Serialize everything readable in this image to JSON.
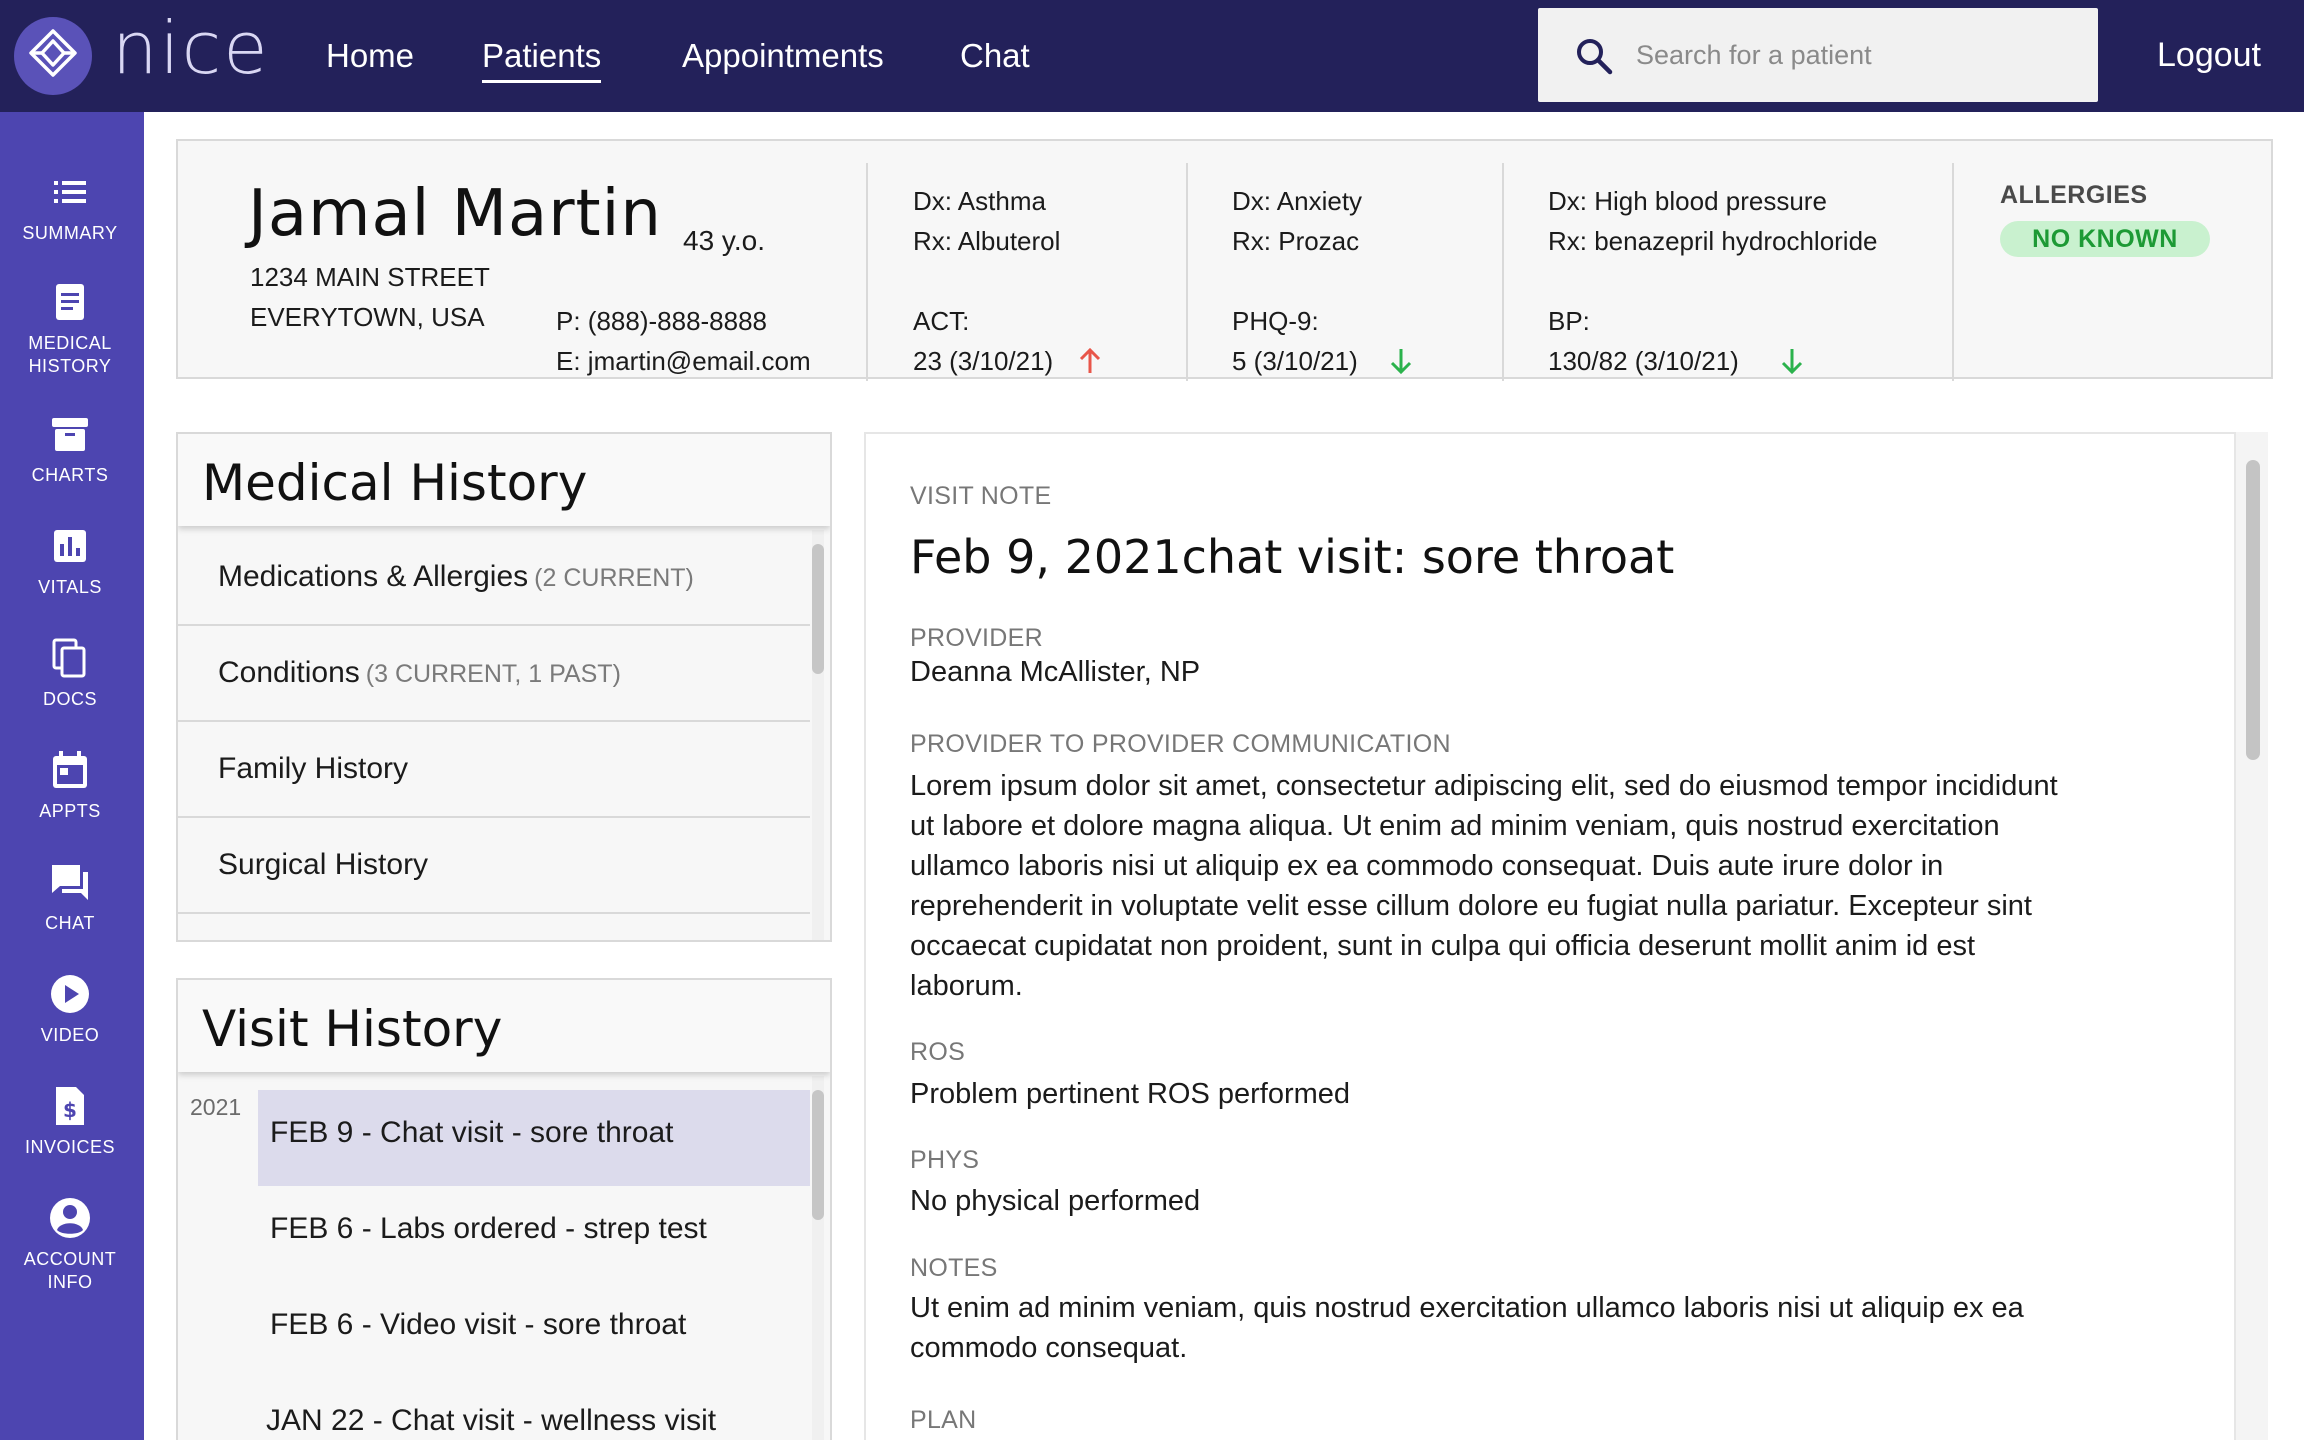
{
  "nav": {
    "logo": "nice",
    "items": [
      {
        "label": "Home"
      },
      {
        "label": "Patients"
      },
      {
        "label": "Appointments"
      },
      {
        "label": "Chat"
      }
    ],
    "active": "Patients",
    "search_placeholder": "Search for a patient",
    "logout": "Logout"
  },
  "sidebar": {
    "items": [
      {
        "label": "SUMMARY",
        "icon": "list-icon"
      },
      {
        "label": "MEDICAL HISTORY",
        "icon": "document-icon"
      },
      {
        "label": "CHARTS",
        "icon": "archive-icon"
      },
      {
        "label": "VITALS",
        "icon": "bar-chart-icon"
      },
      {
        "label": "DOCS",
        "icon": "copy-icon"
      },
      {
        "label": "APPTS",
        "icon": "calendar-icon"
      },
      {
        "label": "CHAT",
        "icon": "chat-icon"
      },
      {
        "label": "VIDEO",
        "icon": "play-icon"
      },
      {
        "label": "INVOICES",
        "icon": "invoice-icon"
      },
      {
        "label": "ACCOUNT INFO",
        "icon": "account-icon"
      }
    ]
  },
  "patient": {
    "name": "Jamal Martin",
    "age": "43 y.o.",
    "address_line1": "1234 MAIN STREET",
    "address_line2": "EVERYTOWN, USA",
    "phone": "P: (888)-888-8888",
    "email": "E: jmartin@email.com",
    "conditions": [
      {
        "dx": "Dx: Asthma",
        "rx": "Rx:  Albuterol",
        "metric_label": "ACT:",
        "metric_value": "23 (3/10/21)",
        "trend": "up",
        "trend_color": "#e8564a"
      },
      {
        "dx": "Dx: Anxiety",
        "rx": "Rx:  Prozac",
        "metric_label": "PHQ-9:",
        "metric_value": "5 (3/10/21)",
        "trend": "down",
        "trend_color": "#2bb24c"
      },
      {
        "dx": "Dx: High blood pressure",
        "rx": "Rx:  benazepril hydrochloride",
        "metric_label": "BP:",
        "metric_value": "130/82 (3/10/21)",
        "trend": "down",
        "trend_color": "#2bb24c"
      }
    ],
    "allergies_title": "ALLERGIES",
    "allergies_value": "NO KNOWN"
  },
  "medical_history": {
    "title": "Medical History",
    "items": [
      {
        "label": "Medications & Allergies",
        "count": "(2 CURRENT)"
      },
      {
        "label": "Conditions",
        "count": "(3 CURRENT, 1 PAST)"
      },
      {
        "label": "Family History",
        "count": ""
      },
      {
        "label": "Surgical History",
        "count": ""
      }
    ]
  },
  "visit_history": {
    "title": "Visit History",
    "year": "2021",
    "visits": [
      {
        "label": "FEB 9 - Chat visit - sore throat",
        "selected": true
      },
      {
        "label": "FEB 6 - Labs ordered - strep test",
        "selected": false
      },
      {
        "label": "FEB 6 - Video visit - sore throat",
        "selected": false
      },
      {
        "label": "JAN 22 - Chat visit - wellness visit",
        "selected": false
      }
    ]
  },
  "visit_note": {
    "section_label": "VISIT NOTE",
    "title": "Feb 9, 2021chat visit: sore throat",
    "provider_label": "PROVIDER",
    "provider": "Deanna McAllister, NP",
    "p2p_label": "PROVIDER TO PROVIDER COMMUNICATION",
    "p2p_lines": [
      "Lorem ipsum dolor sit amet, consectetur adipiscing elit, sed do eiusmod tempor incididunt",
      "ut labore et dolore magna aliqua. Ut enim ad minim veniam, quis nostrud exercitation",
      "ullamco laboris nisi ut aliquip ex ea commodo consequat. Duis aute irure dolor in",
      "reprehenderit in voluptate velit esse cillum dolore eu fugiat nulla pariatur. Excepteur sint",
      "occaecat cupidatat non proident, sunt in culpa qui officia deserunt mollit anim id est",
      "laborum."
    ],
    "ros_label": "ROS",
    "ros": "Problem pertinent ROS performed",
    "phys_label": "PHYS",
    "phys": "No physical performed",
    "notes_label": "NOTES",
    "notes_lines": [
      "Ut enim ad minim veniam, quis nostrud exercitation ullamco laboris nisi ut aliquip ex ea",
      "commodo consequat."
    ],
    "plan_label": "PLAN"
  },
  "colors": {
    "topbar": "#23215a",
    "sidebar": "#4d45b0",
    "selected_row": "#dcdbec",
    "trend_up": "#e8564a",
    "trend_down": "#2bb24c",
    "allergy_badge_bg": "#c9f1cf",
    "allergy_badge_text": "#1d9a35"
  }
}
